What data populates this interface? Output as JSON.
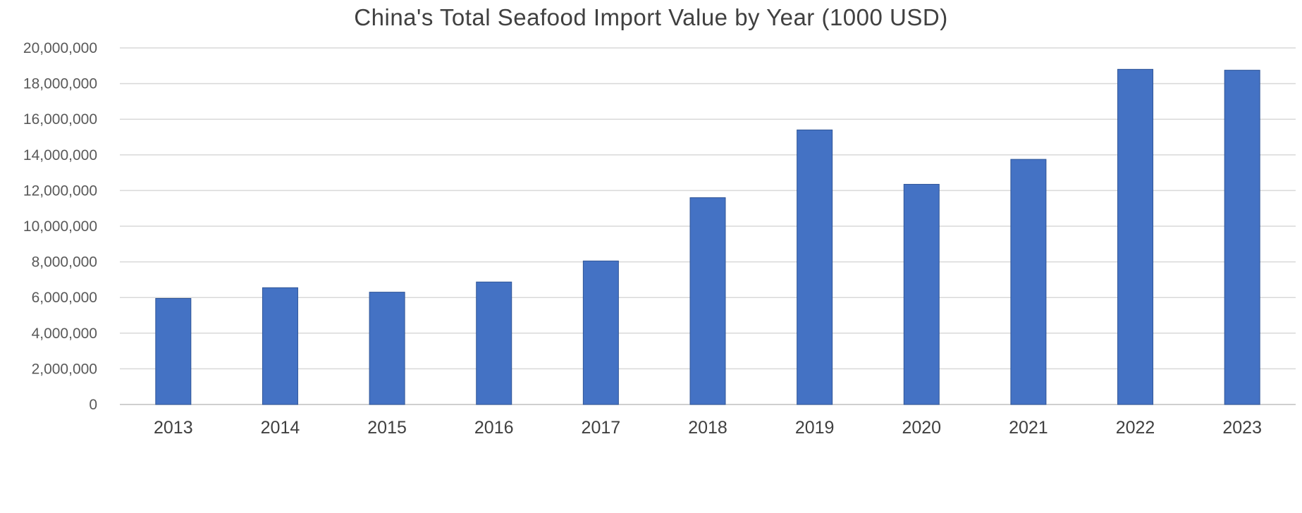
{
  "chart_data": {
    "type": "bar",
    "title": "China's Total Seafood Import Value by Year (1000 USD)",
    "xlabel": "",
    "ylabel": "",
    "categories": [
      "2013",
      "2014",
      "2015",
      "2016",
      "2017",
      "2018",
      "2019",
      "2020",
      "2021",
      "2022",
      "2023"
    ],
    "values": [
      5950000,
      6550000,
      6300000,
      6870000,
      8050000,
      11600000,
      15400000,
      12350000,
      13750000,
      18800000,
      18750000
    ],
    "ylim": [
      0,
      20000000
    ],
    "yticks": [
      "0",
      "2,000,000",
      "4,000,000",
      "6,000,000",
      "8,000,000",
      "10,000,000",
      "12,000,000",
      "14,000,000",
      "16,000,000",
      "18,000,000",
      "20,000,000"
    ],
    "grid": true,
    "legend": "none",
    "bar_color": "#4472c4"
  }
}
